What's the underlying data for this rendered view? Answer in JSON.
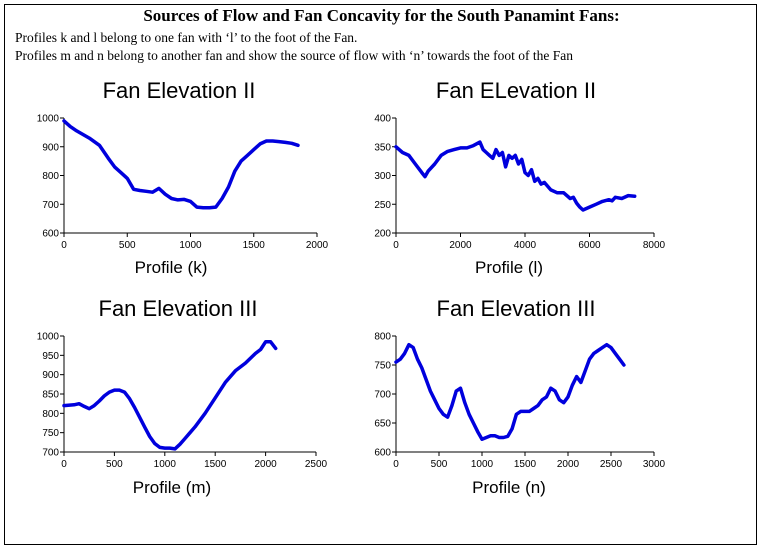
{
  "header": {
    "title": "Sources of Flow and Fan Concavity for the South Panamint Fans:",
    "line1": "Profiles k and l belong to one fan with ‘l’ to the foot of the Fan.",
    "line2": "Profiles m and n belong to another fan and show the source of flow with ‘n’ towards the foot of the Fan"
  },
  "colors": {
    "line": "#0000dd",
    "axis": "#000000"
  },
  "chart_data": [
    {
      "type": "line",
      "title": "Fan Elevation II",
      "xlabel": "Profile (k)",
      "ylabel": "",
      "xlim": [
        0,
        2000
      ],
      "ylim": [
        600,
        1000
      ],
      "xticks": [
        0,
        500,
        1000,
        1500,
        2000
      ],
      "yticks": [
        600,
        700,
        800,
        900,
        1000
      ],
      "series": [
        {
          "x": [
            0,
            50,
            100,
            200,
            280,
            350,
            400,
            450,
            500,
            550,
            600,
            650,
            700,
            750,
            800,
            850,
            900,
            950,
            1000,
            1050,
            1100,
            1150,
            1200,
            1250,
            1300,
            1350,
            1400,
            1450,
            1500,
            1550,
            1600,
            1650,
            1700,
            1750,
            1800,
            1850
          ],
          "y": [
            990,
            970,
            955,
            930,
            905,
            860,
            830,
            810,
            790,
            752,
            748,
            745,
            742,
            755,
            735,
            720,
            715,
            717,
            710,
            690,
            688,
            688,
            690,
            720,
            760,
            815,
            850,
            870,
            890,
            910,
            920,
            920,
            918,
            915,
            912,
            905
          ]
        }
      ]
    },
    {
      "type": "line",
      "title": "Fan ELevation II",
      "xlabel": "Profile (l)",
      "ylabel": "",
      "xlim": [
        0,
        8000
      ],
      "ylim": [
        200,
        400
      ],
      "xticks": [
        0,
        2000,
        4000,
        6000,
        8000
      ],
      "yticks": [
        200,
        250,
        300,
        350,
        400
      ],
      "series": [
        {
          "x": [
            0,
            200,
            400,
            600,
            800,
            900,
            1000,
            1200,
            1400,
            1600,
            1800,
            2000,
            2200,
            2400,
            2600,
            2700,
            2800,
            2900,
            3000,
            3100,
            3200,
            3300,
            3400,
            3500,
            3600,
            3700,
            3800,
            3900,
            4000,
            4100,
            4200,
            4300,
            4400,
            4500,
            4600,
            4800,
            5000,
            5200,
            5400,
            5500,
            5600,
            5700,
            5800,
            6000,
            6200,
            6400,
            6600,
            6700,
            6800,
            7000,
            7200,
            7400
          ],
          "y": [
            350,
            340,
            335,
            320,
            305,
            298,
            308,
            320,
            335,
            342,
            345,
            348,
            348,
            352,
            358,
            345,
            340,
            335,
            330,
            345,
            335,
            340,
            315,
            335,
            330,
            335,
            320,
            328,
            305,
            300,
            310,
            290,
            295,
            285,
            288,
            275,
            270,
            270,
            260,
            262,
            252,
            245,
            240,
            245,
            250,
            255,
            258,
            256,
            262,
            260,
            265,
            264
          ]
        }
      ]
    },
    {
      "type": "line",
      "title": "Fan Elevation III",
      "xlabel": "Profile (m)",
      "ylabel": "",
      "xlim": [
        0,
        2500
      ],
      "ylim": [
        700,
        1000
      ],
      "xticks": [
        0,
        500,
        1000,
        1500,
        2000,
        2500
      ],
      "yticks": [
        700,
        750,
        800,
        850,
        900,
        950,
        1000
      ],
      "series": [
        {
          "x": [
            0,
            100,
            150,
            200,
            250,
            300,
            350,
            400,
            450,
            500,
            550,
            600,
            650,
            700,
            750,
            800,
            850,
            900,
            950,
            1000,
            1050,
            1100,
            1150,
            1200,
            1250,
            1300,
            1400,
            1500,
            1600,
            1700,
            1800,
            1900,
            1950,
            2000,
            2050,
            2100
          ],
          "y": [
            820,
            822,
            825,
            818,
            812,
            820,
            832,
            845,
            855,
            860,
            860,
            855,
            838,
            815,
            790,
            765,
            740,
            722,
            712,
            710,
            710,
            708,
            720,
            735,
            750,
            765,
            800,
            840,
            880,
            910,
            930,
            955,
            965,
            985,
            985,
            968
          ]
        }
      ]
    },
    {
      "type": "line",
      "title": "Fan Elevation III",
      "xlabel": "Profile (n)",
      "ylabel": "",
      "xlim": [
        0,
        3000
      ],
      "ylim": [
        600,
        800
      ],
      "xticks": [
        0,
        500,
        1000,
        1500,
        2000,
        2500,
        3000
      ],
      "yticks": [
        600,
        650,
        700,
        750,
        800
      ],
      "series": [
        {
          "x": [
            0,
            50,
            100,
            150,
            200,
            250,
            300,
            350,
            400,
            450,
            500,
            550,
            600,
            650,
            700,
            750,
            800,
            850,
            900,
            950,
            1000,
            1050,
            1100,
            1150,
            1200,
            1250,
            1300,
            1350,
            1400,
            1450,
            1500,
            1550,
            1600,
            1650,
            1700,
            1750,
            1800,
            1850,
            1900,
            1950,
            2000,
            2050,
            2100,
            2150,
            2200,
            2250,
            2300,
            2350,
            2400,
            2450,
            2500,
            2550,
            2600,
            2650
          ],
          "y": [
            755,
            760,
            770,
            785,
            780,
            760,
            745,
            725,
            705,
            690,
            675,
            665,
            660,
            680,
            705,
            710,
            685,
            665,
            650,
            635,
            622,
            625,
            628,
            628,
            625,
            625,
            627,
            640,
            665,
            670,
            670,
            670,
            675,
            680,
            690,
            695,
            710,
            705,
            690,
            685,
            695,
            715,
            730,
            720,
            740,
            760,
            770,
            775,
            780,
            785,
            780,
            770,
            760,
            750
          ]
        }
      ]
    }
  ]
}
